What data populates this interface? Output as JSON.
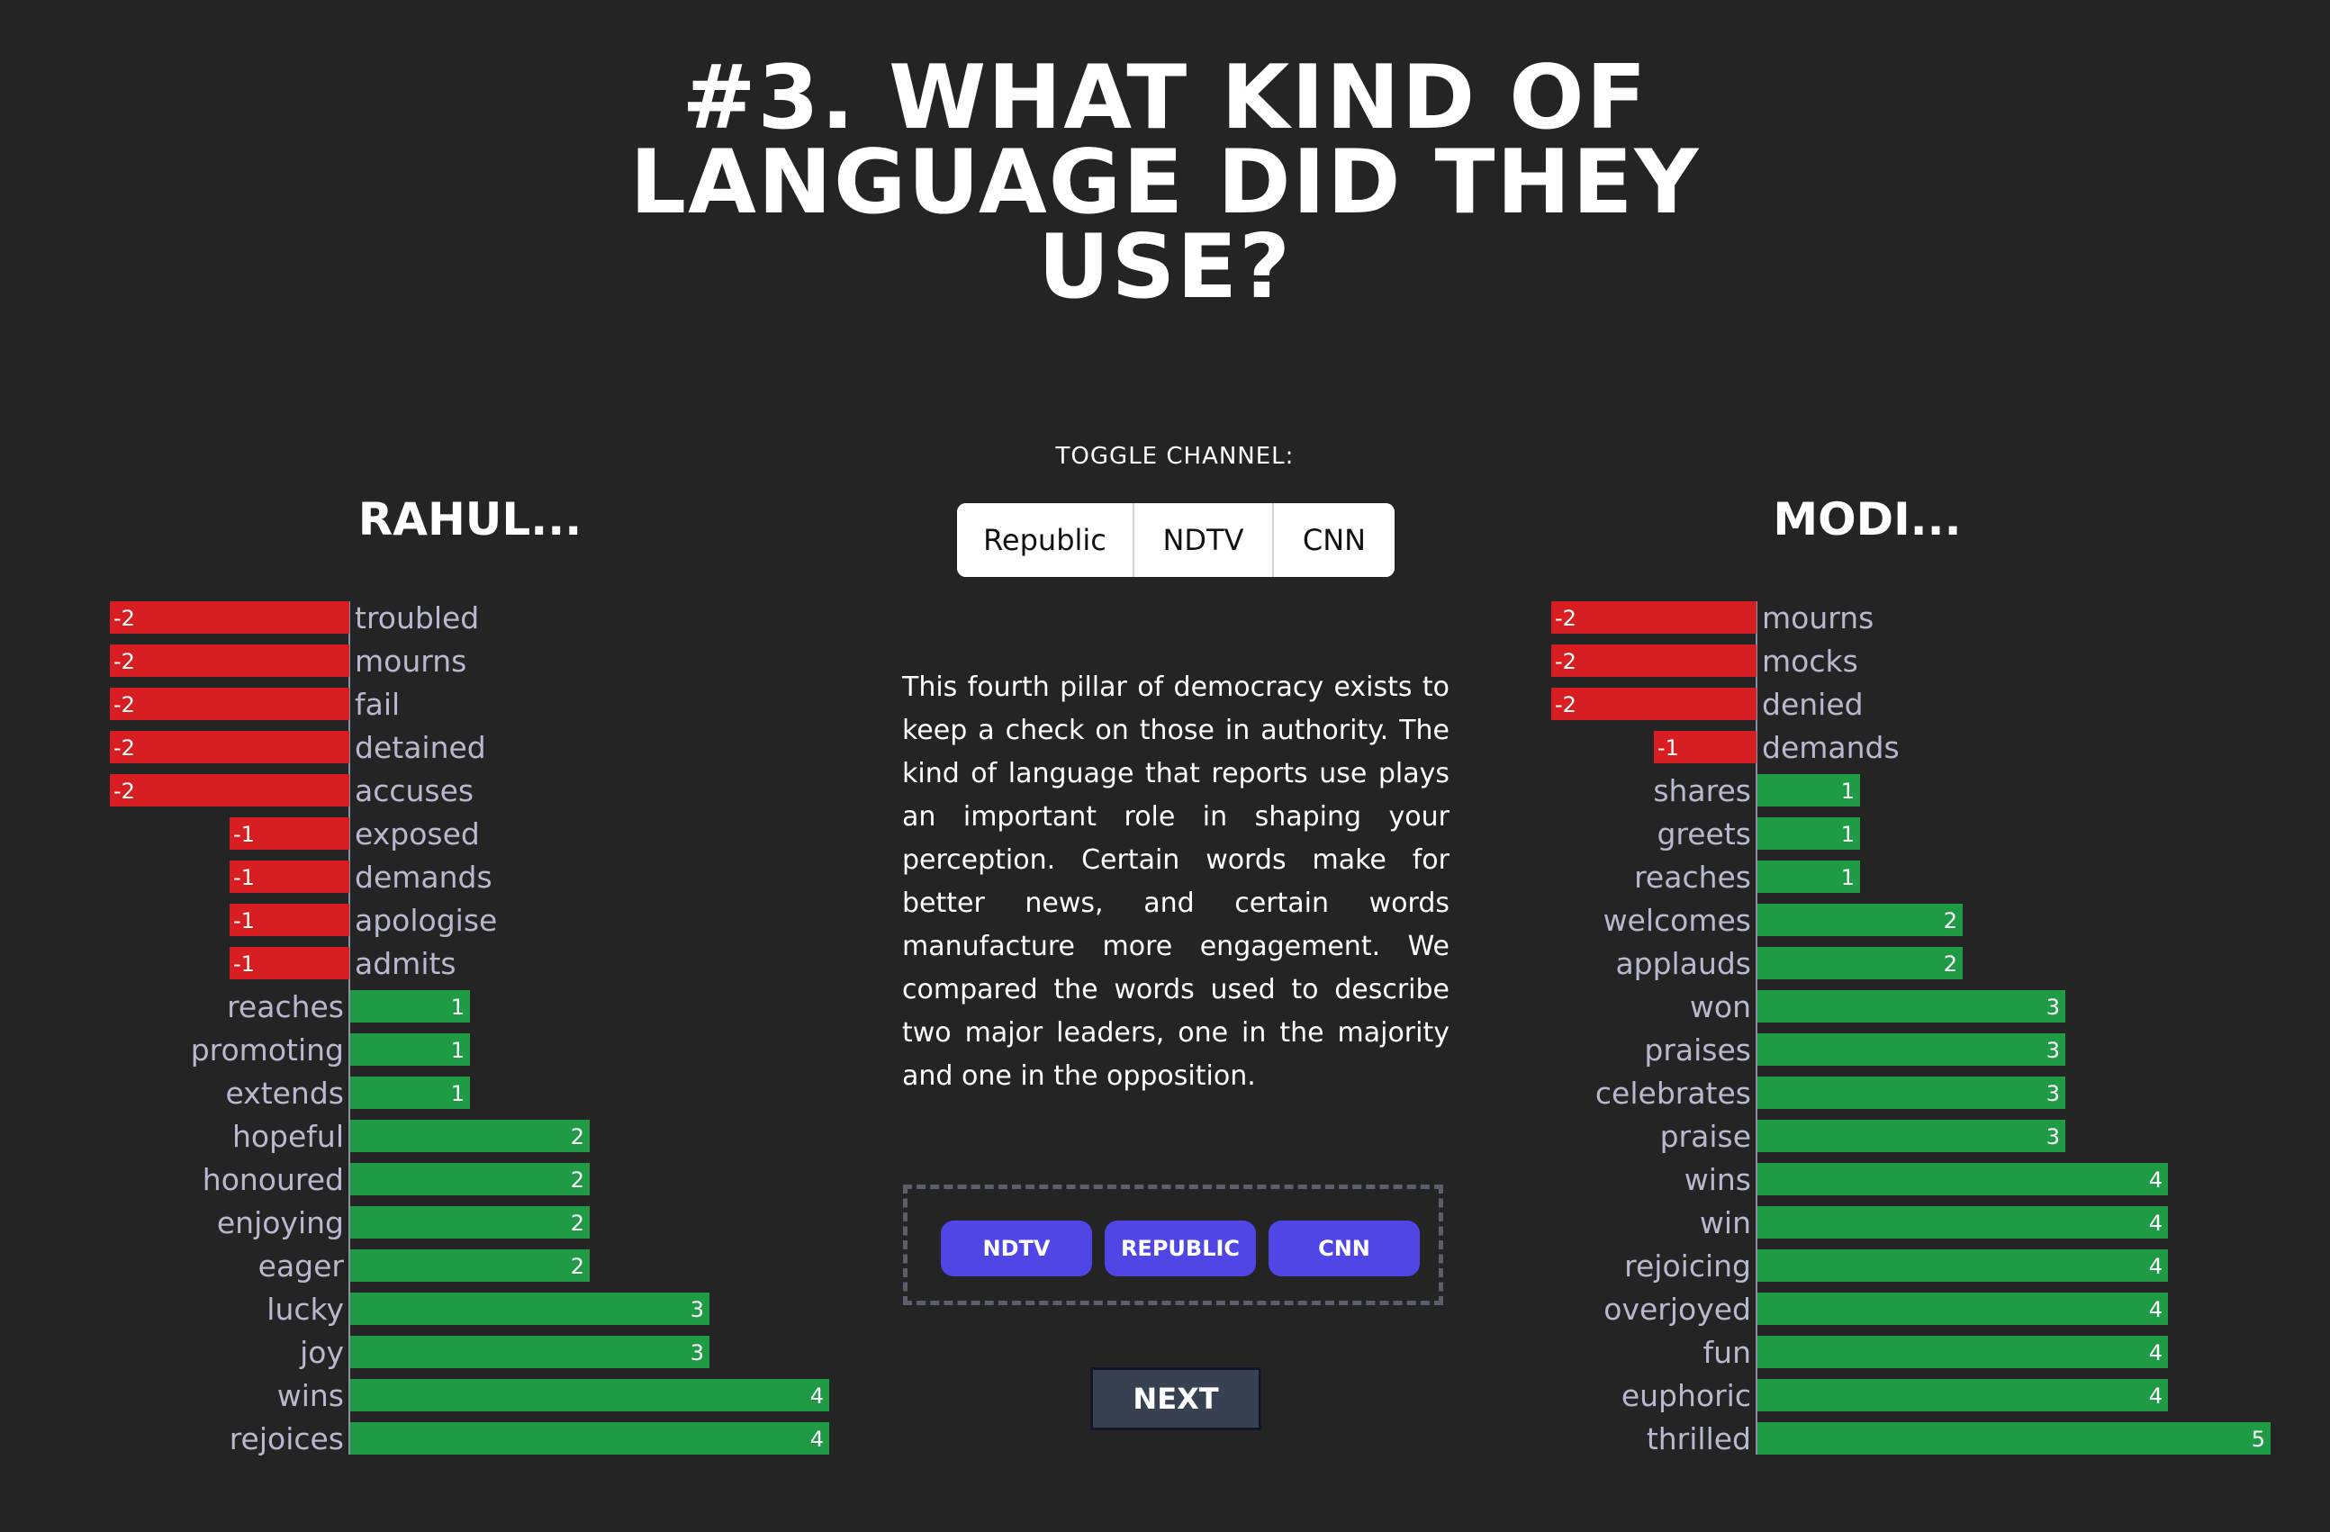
{
  "title_lines": [
    "#3. WHAT KIND OF",
    "LANGUAGE DID THEY",
    "USE?"
  ],
  "toggle": {
    "label": "TOGGLE CHANNEL:",
    "options": [
      "Republic",
      "NDTV",
      "CNN"
    ]
  },
  "description": "This fourth pillar of democracy exists to keep a check on those in authority. The kind of language that reports use plays an important role in shaping your perception. Certain words make for better news, and certain words manufacture more engagement. We compared the words used to describe two major leaders, one in the majority and one in the opposition.",
  "source_buttons": [
    "NDTV",
    "REPUBLIC",
    "CNN"
  ],
  "next_label": "NEXT",
  "colors": {
    "negative": "#d71e22",
    "positive": "#1f9a45",
    "background": "#242424",
    "word_label": "#b8b8cf",
    "button": "#4f46e5"
  },
  "chart_data": [
    {
      "type": "bar",
      "orientation": "horizontal",
      "title": "RAHUL...",
      "categories": [
        "troubled",
        "mourns",
        "fail",
        "detained",
        "accuses",
        "exposed",
        "demands",
        "apologise",
        "admits",
        "reaches",
        "promoting",
        "extends",
        "hopeful",
        "honoured",
        "enjoying",
        "eager",
        "lucky",
        "joy",
        "wins",
        "rejoices"
      ],
      "values": [
        -2,
        -2,
        -2,
        -2,
        -2,
        -1,
        -1,
        -1,
        -1,
        1,
        1,
        1,
        2,
        2,
        2,
        2,
        3,
        3,
        4,
        4
      ],
      "xlim": [
        -2,
        4
      ]
    },
    {
      "type": "bar",
      "orientation": "horizontal",
      "title": "MODI...",
      "categories": [
        "mourns",
        "mocks",
        "denied",
        "demands",
        "shares",
        "greets",
        "reaches",
        "welcomes",
        "applauds",
        "won",
        "praises",
        "celebrates",
        "praise",
        "wins",
        "win",
        "rejoicing",
        "overjoyed",
        "fun",
        "euphoric",
        "thrilled"
      ],
      "values": [
        -2,
        -2,
        -2,
        -1,
        1,
        1,
        1,
        2,
        2,
        3,
        3,
        3,
        3,
        4,
        4,
        4,
        4,
        4,
        4,
        5
      ],
      "xlim": [
        -2,
        5
      ]
    }
  ]
}
